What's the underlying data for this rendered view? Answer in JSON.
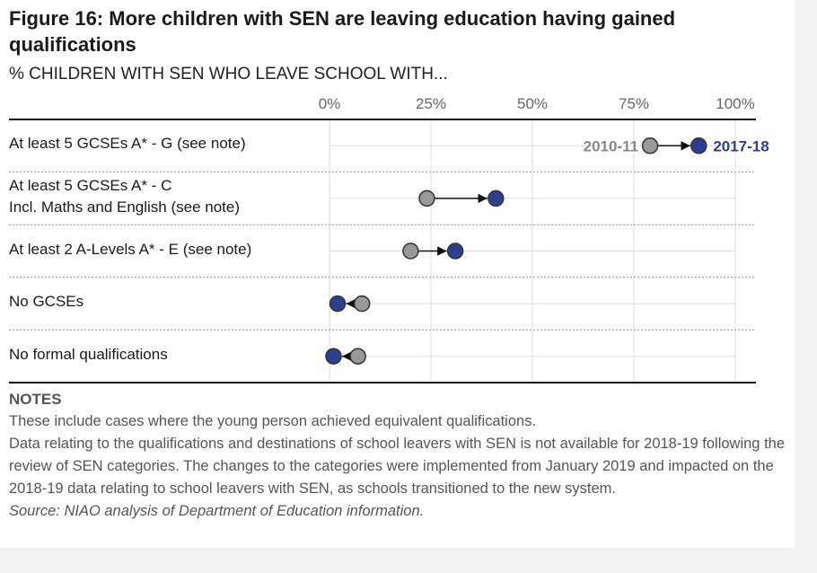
{
  "chart_data": {
    "type": "dumbbell",
    "title": "Figure 16:  More children with SEN are leaving education having gained qualifications",
    "subtitle": "% CHILDREN WITH SEN WHO LEAVE SCHOOL WITH...",
    "categories": [
      "At least 5 GCSEs A* - G (see note)",
      "At least 5 GCSEs A* - C\nIncl. Maths and English (see note)",
      "At least 2 A-Levels A* - E (see note)",
      "No GCSEs",
      "No formal qualifications"
    ],
    "series": [
      {
        "name": "2010-11",
        "color": "#999999",
        "values": [
          79,
          24,
          20,
          8,
          7
        ]
      },
      {
        "name": "2017-18",
        "color": "#2e3f8f",
        "values": [
          91,
          41,
          31,
          2,
          1
        ]
      }
    ],
    "xlim": [
      0,
      100
    ],
    "xticks": [
      {
        "value": 0,
        "label": "0%"
      },
      {
        "value": 25,
        "label": "25%"
      },
      {
        "value": 50,
        "label": "50%"
      },
      {
        "value": 75,
        "label": "75%"
      },
      {
        "value": 100,
        "label": "100%"
      }
    ],
    "grid": true,
    "notes": {
      "heading": "NOTES",
      "lines": [
        "These include cases where the young person achieved equivalent qualifications.",
        "Data relating to the qualifications and destinations of school leavers with SEN is not available for 2018-19 following the review of SEN categories.  The changes to the categories were implemented from January 2019 and impacted on the 2018-19 data relating to school leavers with SEN, as schools transitioned to the new system."
      ],
      "source": "Source: NIAO analysis of Department of Education information."
    }
  }
}
